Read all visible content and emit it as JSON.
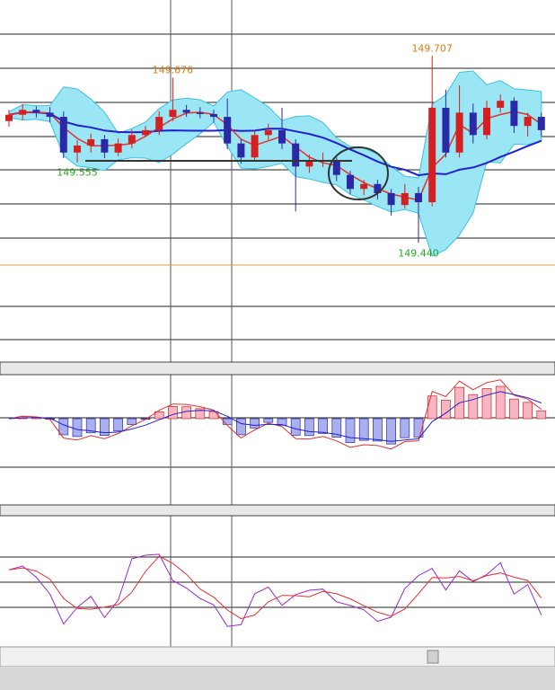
{
  "chart_data": {
    "type": "candlestick",
    "open": [
      149.614,
      149.623,
      149.63,
      149.626,
      149.62,
      149.569,
      149.579,
      149.588,
      149.569,
      149.582,
      149.594,
      149.601,
      149.62,
      149.63,
      149.626,
      149.624,
      149.62,
      149.582,
      149.562,
      149.594,
      149.601,
      149.582,
      149.549,
      149.556,
      149.558,
      149.537,
      149.517,
      149.524,
      149.511,
      149.494,
      149.511,
      149.498,
      149.633,
      149.569,
      149.626,
      149.594,
      149.633,
      149.643,
      149.607,
      149.62
    ],
    "high": [
      149.63,
      149.638,
      149.635,
      149.634,
      149.628,
      149.587,
      149.596,
      149.594,
      149.589,
      149.602,
      149.607,
      149.628,
      149.676,
      149.637,
      149.634,
      149.63,
      149.646,
      149.588,
      149.601,
      149.61,
      149.633,
      149.588,
      149.566,
      149.569,
      149.562,
      149.543,
      149.53,
      149.53,
      149.517,
      149.524,
      149.52,
      149.707,
      149.659,
      149.665,
      149.639,
      149.643,
      149.652,
      149.648,
      149.626,
      149.626
    ],
    "low": [
      149.606,
      149.615,
      149.619,
      149.612,
      149.561,
      149.555,
      149.569,
      149.561,
      149.564,
      149.575,
      149.591,
      149.594,
      149.614,
      149.62,
      149.618,
      149.612,
      149.574,
      149.553,
      149.556,
      149.587,
      149.574,
      149.485,
      149.54,
      149.548,
      149.528,
      149.51,
      149.508,
      149.502,
      149.479,
      149.489,
      149.44,
      149.492,
      149.562,
      149.562,
      149.582,
      149.588,
      149.626,
      149.597,
      149.592,
      149.592
    ],
    "close": [
      149.623,
      149.63,
      149.626,
      149.62,
      149.569,
      149.579,
      149.588,
      149.569,
      149.582,
      149.594,
      149.601,
      149.62,
      149.63,
      149.626,
      149.624,
      149.62,
      149.582,
      149.562,
      149.594,
      149.601,
      149.582,
      149.549,
      149.556,
      149.558,
      149.537,
      149.517,
      149.524,
      149.511,
      149.494,
      149.511,
      149.498,
      149.633,
      149.569,
      149.626,
      149.594,
      149.633,
      149.643,
      149.607,
      149.62,
      149.601
    ],
    "ylim": [
      149.267,
      149.787
    ],
    "up_color": "#d42020",
    "down_color": "#2a2aa8",
    "band_color": "#9ae6f5",
    "fast_color": "#e53030",
    "slow_color": "#2020d0",
    "annotations": [
      {
        "text": "149.676",
        "value": 149.676
      },
      {
        "text": "149.707",
        "value": 149.707
      },
      {
        "text": "149.555",
        "value": 149.555
      },
      {
        "text": "149.440",
        "value": 149.44
      }
    ],
    "high_label_color": "#e07a10",
    "low_label_color": "#22aa22"
  }
}
